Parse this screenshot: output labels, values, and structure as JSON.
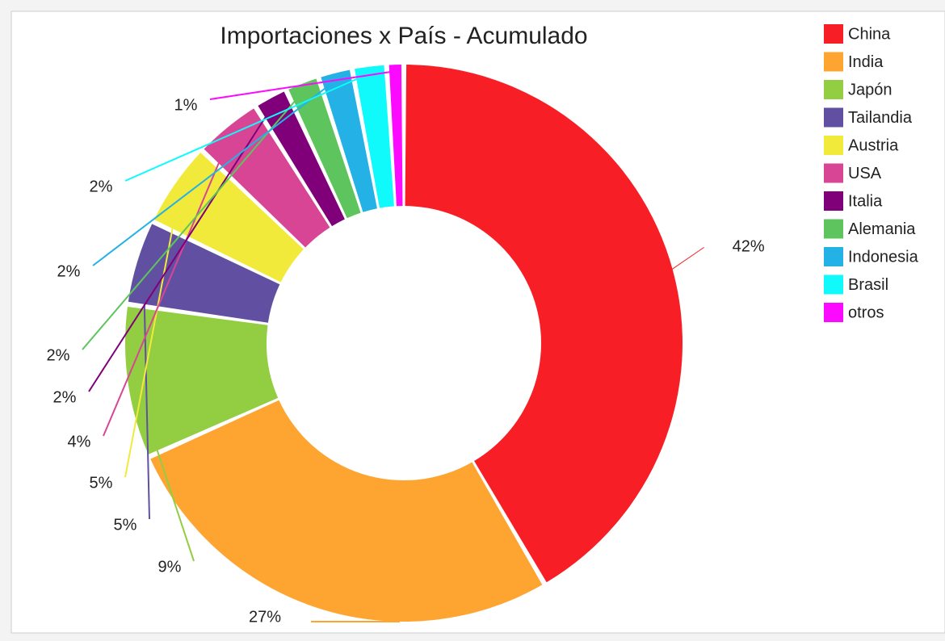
{
  "chart_data": {
    "type": "donut",
    "title": "Importaciones x País - Acumulado",
    "categories": [
      "China",
      "India",
      "Japón",
      "Tailandia",
      "Austria",
      "USA",
      "Italia",
      "Alemania",
      "Indonesia",
      "Brasil",
      "otros"
    ],
    "values": [
      42,
      27,
      9,
      5,
      5,
      4,
      2,
      2,
      2,
      2,
      1
    ],
    "value_labels": [
      "42%",
      "27%",
      "9%",
      "5%",
      "5%",
      "4%",
      "2%",
      "2%",
      "2%",
      "2%",
      "1%"
    ],
    "colors": [
      "#f81e26",
      "#fea531",
      "#92cd42",
      "#6150a2",
      "#f2ea3a",
      "#d94595",
      "#7f0079",
      "#5ec45d",
      "#23b1e6",
      "#10fafc",
      "#fc09ff"
    ],
    "legend": "right"
  }
}
